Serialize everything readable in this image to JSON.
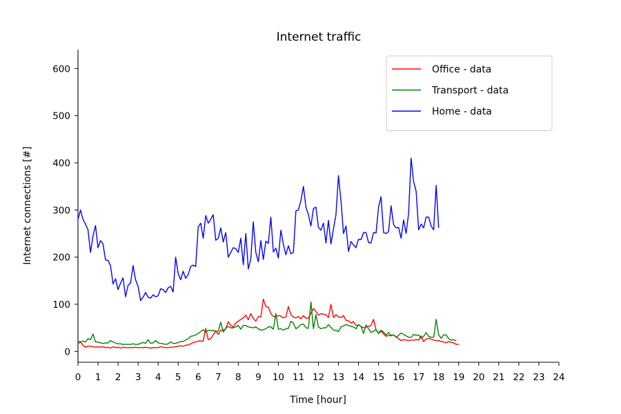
{
  "chart_data": {
    "type": "line",
    "title": "Internet traffic",
    "xlabel": "Time [hour]",
    "ylabel": "Internet connections [#]",
    "xlim": [
      0,
      24
    ],
    "ylim": [
      -23,
      640
    ],
    "xticks": [
      0,
      1,
      2,
      3,
      4,
      5,
      6,
      7,
      8,
      9,
      10,
      11,
      12,
      13,
      14,
      15,
      16,
      17,
      18,
      19,
      20,
      21,
      22,
      23,
      24
    ],
    "yticks": [
      0,
      100,
      200,
      300,
      400,
      500,
      600
    ],
    "grid": false,
    "legend_position": "top-right",
    "x_step": 0.125,
    "series": [
      {
        "name": "Office - data",
        "color": "#ff0000",
        "values": [
          16,
          20,
          13,
          9,
          11,
          11,
          10,
          9,
          10,
          9,
          10,
          8,
          9,
          7,
          10,
          8,
          9,
          7,
          9,
          8,
          8,
          8,
          8,
          9,
          8,
          8,
          8,
          9,
          8,
          7,
          8,
          8,
          8,
          10,
          9,
          8,
          8,
          9,
          9,
          10,
          11,
          12,
          11,
          13,
          14,
          16,
          19,
          20,
          22,
          22,
          22,
          49,
          25,
          27,
          35,
          44,
          36,
          45,
          45,
          48,
          63,
          55,
          52,
          60,
          64,
          68,
          71,
          77,
          67,
          80,
          70,
          64,
          74,
          73,
          111,
          95,
          94,
          80,
          74,
          74,
          76,
          75,
          71,
          73,
          95,
          78,
          73,
          71,
          74,
          69,
          76,
          70,
          71,
          81,
          91,
          85,
          77,
          80,
          79,
          78,
          72,
          100,
          72,
          78,
          73,
          72,
          76,
          66,
          65,
          60,
          63,
          55,
          56,
          53,
          50,
          52,
          53,
          55,
          68,
          46,
          38,
          43,
          37,
          32,
          34,
          33,
          35,
          31,
          27,
          23,
          25,
          24,
          23,
          24,
          24,
          25,
          24,
          33,
          21,
          26,
          28,
          26,
          24,
          23,
          23,
          21,
          20,
          18,
          21,
          19,
          18,
          15,
          15
        ]
      },
      {
        "name": "Transport - data",
        "color": "#008000",
        "values": [
          22,
          20,
          22,
          20,
          27,
          25,
          37,
          20,
          20,
          18,
          17,
          18,
          18,
          23,
          20,
          18,
          16,
          16,
          15,
          15,
          15,
          15,
          16,
          15,
          15,
          17,
          19,
          17,
          25,
          17,
          18,
          23,
          18,
          17,
          16,
          15,
          16,
          20,
          17,
          17,
          19,
          21,
          21,
          24,
          27,
          32,
          33,
          35,
          38,
          42,
          46,
          40,
          45,
          44,
          45,
          42,
          43,
          62,
          41,
          49,
          53,
          50,
          50,
          52,
          55,
          47,
          55,
          55,
          52,
          51,
          50,
          52,
          48,
          45,
          46,
          48,
          52,
          52,
          47,
          80,
          47,
          48,
          45,
          48,
          49,
          64,
          60,
          48,
          52,
          57,
          58,
          50,
          49,
          105,
          48,
          78,
          52,
          48,
          50,
          50,
          57,
          51,
          45,
          45,
          42,
          52,
          54,
          57,
          55,
          53,
          52,
          48,
          57,
          53,
          38,
          56,
          48,
          40,
          43,
          46,
          39,
          45,
          41,
          35,
          40,
          34,
          35,
          30,
          34,
          39,
          36,
          33,
          30,
          30,
          36,
          34,
          35,
          28,
          32,
          40,
          32,
          30,
          30,
          68,
          35,
          28,
          35,
          35,
          27,
          24,
          25,
          22
        ]
      },
      {
        "name": "Home - data",
        "color": "#0000ff",
        "values": [
          280,
          300,
          280,
          270,
          258,
          210,
          245,
          267,
          220,
          235,
          228,
          194,
          193,
          182,
          143,
          154,
          131,
          145,
          156,
          116,
          140,
          145,
          182,
          152,
          138,
          108,
          115,
          125,
          115,
          113,
          120,
          116,
          118,
          133,
          131,
          125,
          135,
          138,
          126,
          200,
          165,
          152,
          170,
          155,
          163,
          180,
          183,
          180,
          264,
          272,
          240,
          288,
          272,
          280,
          290,
          236,
          240,
          262,
          232,
          252,
          200,
          210,
          220,
          218,
          210,
          240,
          184,
          250,
          175,
          196,
          275,
          210,
          190,
          235,
          195,
          234,
          229,
          285,
          211,
          219,
          198,
          257,
          227,
          205,
          224,
          207,
          210,
          298,
          300,
          320,
          350,
          306,
          290,
          266,
          303,
          306,
          263,
          257,
          272,
          230,
          278,
          228,
          260,
          290,
          373,
          320,
          250,
          266,
          212,
          233,
          226,
          220,
          238,
          237,
          252,
          252,
          231,
          230,
          252,
          251,
          306,
          328,
          252,
          250,
          254,
          309,
          269,
          262,
          263,
          240,
          279,
          250,
          293,
          410,
          360,
          340,
          258,
          270,
          262,
          285,
          285,
          266,
          258,
          352,
          262
        ]
      }
    ]
  }
}
